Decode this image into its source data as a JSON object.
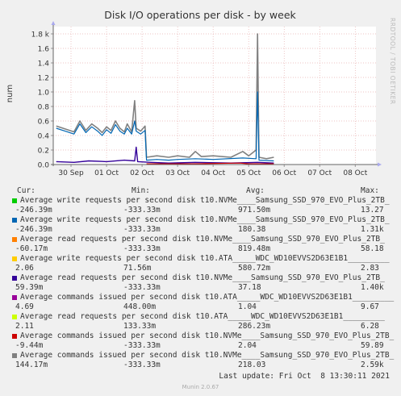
{
  "chart_data": {
    "type": "line",
    "title": "Disk I/O operations per disk - by week",
    "ylabel": "num",
    "watermark": "RRDTOOL / TOBI OETIKER",
    "ylim": [
      0,
      1.9
    ],
    "yticks": [
      0,
      0.2,
      0.4,
      0.6,
      0.8,
      1.0,
      1.2,
      1.4,
      1.6,
      1.8
    ],
    "ytick_labels": [
      "0.0",
      "0.2",
      "0.4",
      "0.6",
      "0.8",
      "1.0",
      "1.2",
      "1.4",
      "1.6",
      "1.8 k"
    ],
    "xlim": [
      "2021-09-29T12:00",
      "2021-10-08T14:00"
    ],
    "xtick_dates": [
      "2021-09-30T00:00",
      "2021-10-01T00:00",
      "2021-10-02T00:00",
      "2021-10-03T00:00",
      "2021-10-04T00:00",
      "2021-10-05T00:00",
      "2021-10-06T00:00",
      "2021-10-07T00:00",
      "2021-10-08T00:00"
    ],
    "xtick_labels": [
      "30 Sep",
      "01 Oct",
      "02 Oct",
      "03 Oct",
      "04 Oct",
      "05 Oct",
      "06 Oct",
      "07 Oct",
      "08 Oct"
    ],
    "grid": true,
    "series": [
      {
        "name": "Average commands issued per second disk t10.NVMe____Samsung_SSD_970_EVO_Plus_2TB_",
        "color": "#808080",
        "width": 1.6,
        "points": [
          [
            "2021-09-29T14:00",
            0.53
          ],
          [
            "2021-09-29T20:00",
            0.49
          ],
          [
            "2021-09-30T02:00",
            0.45
          ],
          [
            "2021-09-30T06:00",
            0.6
          ],
          [
            "2021-09-30T10:00",
            0.47
          ],
          [
            "2021-09-30T14:00",
            0.56
          ],
          [
            "2021-09-30T18:00",
            0.5
          ],
          [
            "2021-09-30T21:00",
            0.44
          ],
          [
            "2021-10-01T00:00",
            0.52
          ],
          [
            "2021-10-01T03:00",
            0.47
          ],
          [
            "2021-10-01T06:00",
            0.6
          ],
          [
            "2021-10-01T09:00",
            0.5
          ],
          [
            "2021-10-01T12:00",
            0.45
          ],
          [
            "2021-10-01T14:00",
            0.56
          ],
          [
            "2021-10-01T17:00",
            0.45
          ],
          [
            "2021-10-01T19:00",
            0.88
          ],
          [
            "2021-10-01T20:00",
            0.5
          ],
          [
            "2021-10-01T23:00",
            0.46
          ],
          [
            "2021-10-02T02:00",
            0.53
          ],
          [
            "2021-10-02T03:00",
            0.1
          ],
          [
            "2021-10-02T10:00",
            0.12
          ],
          [
            "2021-10-02T18:00",
            0.1
          ],
          [
            "2021-10-03T00:00",
            0.12
          ],
          [
            "2021-10-03T08:00",
            0.1
          ],
          [
            "2021-10-03T12:00",
            0.18
          ],
          [
            "2021-10-03T16:00",
            0.11
          ],
          [
            "2021-10-04T00:00",
            0.12
          ],
          [
            "2021-10-04T12:00",
            0.1
          ],
          [
            "2021-10-04T20:00",
            0.18
          ],
          [
            "2021-10-05T00:00",
            0.12
          ],
          [
            "2021-10-05T05:00",
            0.2
          ],
          [
            "2021-10-05T06:00",
            1.8
          ],
          [
            "2021-10-05T07:00",
            0.1
          ],
          [
            "2021-10-05T12:00",
            0.08
          ],
          [
            "2021-10-05T17:00",
            0.1
          ]
        ]
      },
      {
        "name": "Average write requests per second disk t10.NVMe____Samsung_SSD_970_EVO_Plus_2TB_",
        "color": "#0066b3",
        "width": 1.2,
        "points": [
          [
            "2021-09-29T14:00",
            0.5
          ],
          [
            "2021-09-29T20:00",
            0.46
          ],
          [
            "2021-09-30T02:00",
            0.42
          ],
          [
            "2021-09-30T06:00",
            0.56
          ],
          [
            "2021-09-30T10:00",
            0.44
          ],
          [
            "2021-09-30T14:00",
            0.52
          ],
          [
            "2021-09-30T18:00",
            0.46
          ],
          [
            "2021-09-30T21:00",
            0.4
          ],
          [
            "2021-10-01T00:00",
            0.48
          ],
          [
            "2021-10-01T03:00",
            0.43
          ],
          [
            "2021-10-01T06:00",
            0.55
          ],
          [
            "2021-10-01T09:00",
            0.46
          ],
          [
            "2021-10-01T12:00",
            0.42
          ],
          [
            "2021-10-01T14:00",
            0.5
          ],
          [
            "2021-10-01T17:00",
            0.42
          ],
          [
            "2021-10-01T19:00",
            0.6
          ],
          [
            "2021-10-01T20:00",
            0.46
          ],
          [
            "2021-10-01T23:00",
            0.42
          ],
          [
            "2021-10-02T02:00",
            0.47
          ],
          [
            "2021-10-02T03:00",
            0.06
          ],
          [
            "2021-10-02T10:00",
            0.07
          ],
          [
            "2021-10-02T18:00",
            0.06
          ],
          [
            "2021-10-03T00:00",
            0.07
          ],
          [
            "2021-10-03T12:00",
            0.08
          ],
          [
            "2021-10-04T00:00",
            0.07
          ],
          [
            "2021-10-04T20:00",
            0.09
          ],
          [
            "2021-10-05T05:00",
            0.08
          ],
          [
            "2021-10-05T06:00",
            1.0
          ],
          [
            "2021-10-05T07:00",
            0.06
          ],
          [
            "2021-10-05T17:00",
            0.05
          ]
        ]
      },
      {
        "name": "Average read requests per second disk t10.NVMe____Samsung_SSD_970_EVO_Plus_2TB_",
        "color": "#330099",
        "width": 1.4,
        "points": [
          [
            "2021-09-29T14:00",
            0.04
          ],
          [
            "2021-09-30T02:00",
            0.03
          ],
          [
            "2021-09-30T12:00",
            0.05
          ],
          [
            "2021-10-01T00:00",
            0.04
          ],
          [
            "2021-10-01T12:00",
            0.06
          ],
          [
            "2021-10-01T19:00",
            0.05
          ],
          [
            "2021-10-01T20:00",
            0.24
          ],
          [
            "2021-10-01T21:00",
            0.04
          ],
          [
            "2021-10-02T06:00",
            0.03
          ],
          [
            "2021-10-02T18:00",
            0.02
          ],
          [
            "2021-10-03T12:00",
            0.03
          ],
          [
            "2021-10-04T12:00",
            0.02
          ],
          [
            "2021-10-05T06:00",
            0.03
          ],
          [
            "2021-10-05T17:00",
            0.02
          ]
        ]
      },
      {
        "name": "Average commands issued per second disk t10.NVMe____Samsung_SSD_970_EVO_Plus_2TB_",
        "color": "#cc0000",
        "width": 1.2,
        "points": [
          [
            "2021-10-02T03:00",
            0.01
          ],
          [
            "2021-10-03T12:00",
            0.01
          ],
          [
            "2021-10-04T18:00",
            0.02
          ],
          [
            "2021-10-05T00:00",
            0.01
          ],
          [
            "2021-10-05T17:00",
            0.01
          ]
        ]
      }
    ]
  },
  "legend": {
    "headers": {
      "cur": "Cur:",
      "min": "Min:",
      "avg": "Avg:",
      "max": "Max:"
    },
    "entries": [
      {
        "color": "#00cc00",
        "label": "Average write requests per second disk t10.NVMe____Samsung_SSD_970_EVO_Plus_2TB_",
        "cur": "-246.39m",
        "min": "-333.33m",
        "avg": "971.50m",
        "max": "13.27"
      },
      {
        "color": "#0066b3",
        "label": "Average write requests per second disk t10.NVMe____Samsung_SSD_970_EVO_Plus_2TB_",
        "cur": "-246.39m",
        "min": "-333.33m",
        "avg": "180.38",
        "max": "1.31k"
      },
      {
        "color": "#ff8000",
        "label": "Average read requests per second disk t10.NVMe____Samsung_SSD_970_EVO_Plus_2TB_",
        "cur": "-60.17m",
        "min": "-333.33m",
        "avg": "819.48m",
        "max": "58.18"
      },
      {
        "color": "#ffcc00",
        "label": "Average write requests per second disk t10.ATA_____WDC_WD10EVVS2D63E1B1_________",
        "cur": "2.06",
        "min": "71.56m",
        "avg": "580.72m",
        "max": "2.83"
      },
      {
        "color": "#330099",
        "label": "Average read requests per second disk t10.NVMe____Samsung_SSD_970_EVO_Plus_2TB_",
        "cur": "59.39m",
        "min": "-333.33m",
        "avg": "37.18",
        "max": "1.40k"
      },
      {
        "color": "#990099",
        "label": "Average commands issued per second disk t10.ATA_____WDC_WD10EVVS2D63E1B1_________",
        "cur": "4.69",
        "min": "448.00m",
        "avg": "1.04",
        "max": "9.67"
      },
      {
        "color": "#ccff00",
        "label": "Average read requests per second disk t10.ATA_____WDC_WD10EVVS2D63E1B1_________",
        "cur": "2.11",
        "min": "133.33m",
        "avg": "286.23m",
        "max": "6.28"
      },
      {
        "color": "#cc0000",
        "label": "Average commands issued per second disk t10.NVMe____Samsung_SSD_970_EVO_Plus_2TB_",
        "cur": "-9.44m",
        "min": "-333.33m",
        "avg": "2.04",
        "max": "59.89"
      },
      {
        "color": "#808080",
        "label": "Average commands issued per second disk t10.NVMe____Samsung_SSD_970_EVO_Plus_2TB_",
        "cur": "144.17m",
        "min": "-333.33m",
        "avg": "218.03",
        "max": "2.59k"
      }
    ]
  },
  "last_update": "Last update: Fri Oct  8 13:30:11 2021",
  "version": "Munin 2.0.67"
}
